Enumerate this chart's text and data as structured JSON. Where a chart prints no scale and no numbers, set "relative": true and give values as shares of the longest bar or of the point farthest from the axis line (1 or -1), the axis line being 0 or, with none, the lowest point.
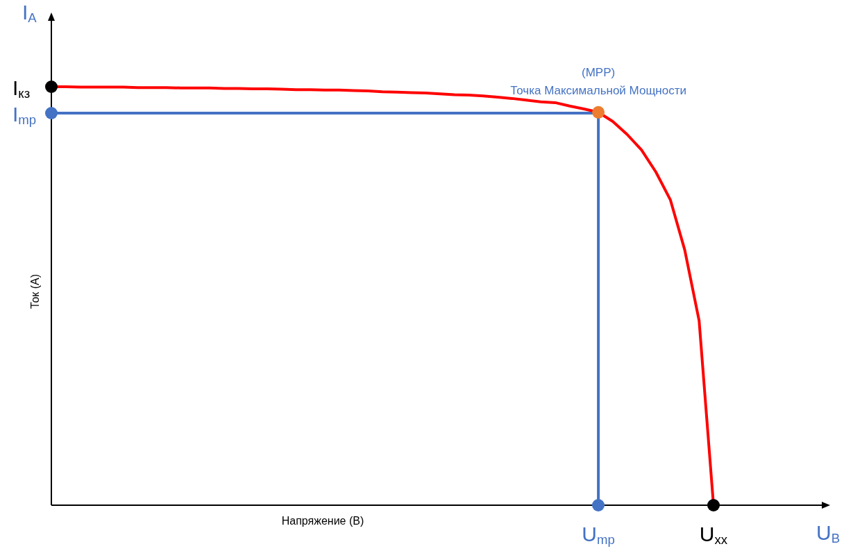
{
  "chart_data": {
    "type": "line",
    "relative": true,
    "xlabel": "Напряжение (В)",
    "ylabel": "Ток (А)",
    "categories": [
      null,
      null,
      null,
      null,
      null,
      null,
      null,
      null,
      null,
      null,
      null,
      null,
      null,
      null,
      null,
      null,
      null,
      null,
      null,
      null,
      null,
      null,
      null,
      null,
      null,
      null,
      null,
      null,
      null,
      null,
      null,
      null,
      null,
      null,
      null,
      null,
      null,
      null,
      "U$_{mp}$",
      null,
      null,
      null,
      null,
      null,
      null,
      null,
      "U$_{xx}$"
    ],
    "series": [
      {
        "color": "#ff0000",
        "values": [
          1,
          1,
          0.999,
          0.999,
          0.999,
          0.999,
          0.998,
          0.998,
          0.998,
          0.997,
          0.997,
          0.997,
          0.996,
          0.996,
          0.995,
          0.995,
          0.994,
          0.993,
          0.993,
          0.992,
          0.992,
          0.991,
          0.99,
          0.988,
          0.987,
          0.986,
          0.985,
          0.983,
          0.981,
          0.98,
          0.978,
          0.975,
          0.972,
          0.968,
          0.964,
          0.962,
          0.954,
          0.947,
          0.939,
          0.917,
          0.886,
          0.849,
          0.796,
          0.73,
          0.61,
          0.441,
          0
        ],
        "colors": [
          "#000000",
          null,
          null,
          null,
          null,
          null,
          null,
          null,
          null,
          null,
          null,
          null,
          null,
          null,
          null,
          null,
          null,
          null,
          null,
          null,
          null,
          null,
          null,
          null,
          null,
          null,
          null,
          null,
          null,
          null,
          null,
          null,
          null,
          null,
          null,
          null,
          null,
          null,
          "#ed7d31",
          null,
          null,
          null,
          null,
          null,
          null,
          null,
          "#000000"
        ]
      }
    ],
    "ref_lines": [
      {
        "axis": "y",
        "value": 0.937,
        "color": "#4472c4"
      },
      {
        "axis": "x",
        "value": "U$_{mp}$",
        "color": "#4472c4"
      }
    ],
    "annotations": [
      "I$_{A}$",
      "U$_{B}$",
      "(MPP)",
      "Точка Максимальной Мощности",
      "I$_{кз}$",
      "I$_{mp}$"
    ]
  }
}
